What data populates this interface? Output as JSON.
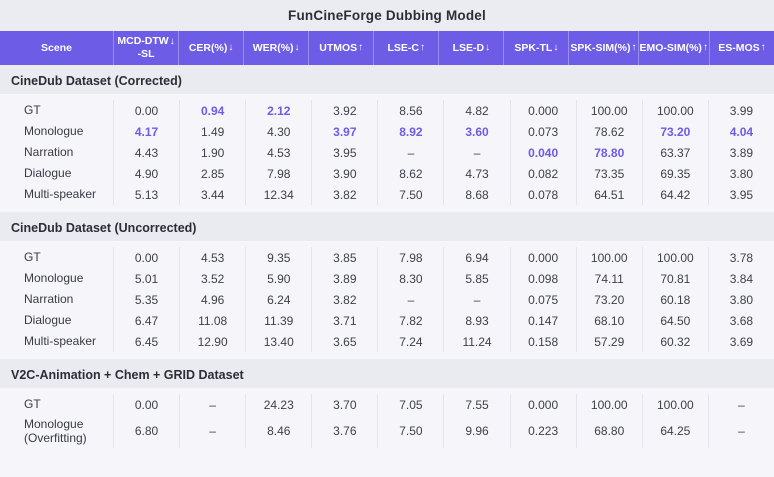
{
  "title": "FunCineForge Dubbing Model",
  "colors": {
    "header_bg": "#6d5ce6",
    "header_text": "#ffffff",
    "highlight": "#6c5ce7",
    "body_text": "#3f3f49",
    "block_bg": "#f5f5fa",
    "page_bg": "#eaeaf1"
  },
  "chart_data": {
    "type": "table",
    "title": "FunCineForge Dubbing Model",
    "columns": [
      {
        "label": "Scene",
        "arrow": ""
      },
      {
        "label": "MCD-DTW",
        "label2": "-SL",
        "arrow": "↓"
      },
      {
        "label": "CER(%)",
        "arrow": "↓"
      },
      {
        "label": "WER(%)",
        "arrow": "↓"
      },
      {
        "label": "UTMOS",
        "arrow": "↑"
      },
      {
        "label": "LSE-C",
        "arrow": "↑"
      },
      {
        "label": "LSE-D",
        "arrow": "↓"
      },
      {
        "label": "SPK-TL",
        "arrow": "↓"
      },
      {
        "label": "SPK-SIM(%)",
        "arrow": "↑"
      },
      {
        "label": "EMO-SIM(%)",
        "arrow": "↑"
      },
      {
        "label": "ES-MOS",
        "arrow": "↑"
      }
    ],
    "sections": [
      {
        "title": "CineDub Dataset (Corrected)",
        "rows": [
          {
            "scene": "GT",
            "values": [
              "0.00",
              "0.94",
              "2.12",
              "3.92",
              "8.56",
              "4.82",
              "0.000",
              "100.00",
              "100.00",
              "3.99"
            ],
            "highlight": [
              1,
              2
            ]
          },
          {
            "scene": "Monologue",
            "values": [
              "4.17",
              "1.49",
              "4.30",
              "3.97",
              "8.92",
              "3.60",
              "0.073",
              "78.62",
              "73.20",
              "4.04"
            ],
            "highlight": [
              0,
              3,
              4,
              5,
              8,
              9
            ]
          },
          {
            "scene": "Narration",
            "values": [
              "4.43",
              "1.90",
              "4.53",
              "3.95",
              "–",
              "–",
              "0.040",
              "78.80",
              "63.37",
              "3.89"
            ],
            "highlight": [
              6,
              7
            ]
          },
          {
            "scene": "Dialogue",
            "values": [
              "4.90",
              "2.85",
              "7.98",
              "3.90",
              "8.62",
              "4.73",
              "0.082",
              "73.35",
              "69.35",
              "3.80"
            ],
            "highlight": []
          },
          {
            "scene": "Multi-speaker",
            "values": [
              "5.13",
              "3.44",
              "12.34",
              "3.82",
              "7.50",
              "8.68",
              "0.078",
              "64.51",
              "64.42",
              "3.95"
            ],
            "highlight": []
          }
        ]
      },
      {
        "title": "CineDub Dataset (Uncorrected)",
        "rows": [
          {
            "scene": "GT",
            "values": [
              "0.00",
              "4.53",
              "9.35",
              "3.85",
              "7.98",
              "6.94",
              "0.000",
              "100.00",
              "100.00",
              "3.78"
            ],
            "highlight": []
          },
          {
            "scene": "Monologue",
            "values": [
              "5.01",
              "3.52",
              "5.90",
              "3.89",
              "8.30",
              "5.85",
              "0.098",
              "74.11",
              "70.81",
              "3.84"
            ],
            "highlight": []
          },
          {
            "scene": "Narration",
            "values": [
              "5.35",
              "4.96",
              "6.24",
              "3.82",
              "–",
              "–",
              "0.075",
              "73.20",
              "60.18",
              "3.80"
            ],
            "highlight": []
          },
          {
            "scene": "Dialogue",
            "values": [
              "6.47",
              "11.08",
              "11.39",
              "3.71",
              "7.82",
              "8.93",
              "0.147",
              "68.10",
              "64.50",
              "3.68"
            ],
            "highlight": []
          },
          {
            "scene": "Multi-speaker",
            "values": [
              "6.45",
              "12.90",
              "13.40",
              "3.65",
              "7.24",
              "11.24",
              "0.158",
              "57.29",
              "60.32",
              "3.69"
            ],
            "highlight": []
          }
        ]
      },
      {
        "title": "V2C-Animation + Chem + GRID Dataset",
        "rows": [
          {
            "scene": "GT",
            "values": [
              "0.00",
              "–",
              "24.23",
              "3.70",
              "7.05",
              "7.55",
              "0.000",
              "100.00",
              "100.00",
              "–"
            ],
            "highlight": []
          },
          {
            "scene": "Monologue\n(Overfitting)",
            "values": [
              "6.80",
              "–",
              "8.46",
              "3.76",
              "7.50",
              "9.96",
              "0.223",
              "68.80",
              "64.25",
              "–"
            ],
            "highlight": []
          }
        ]
      }
    ]
  }
}
